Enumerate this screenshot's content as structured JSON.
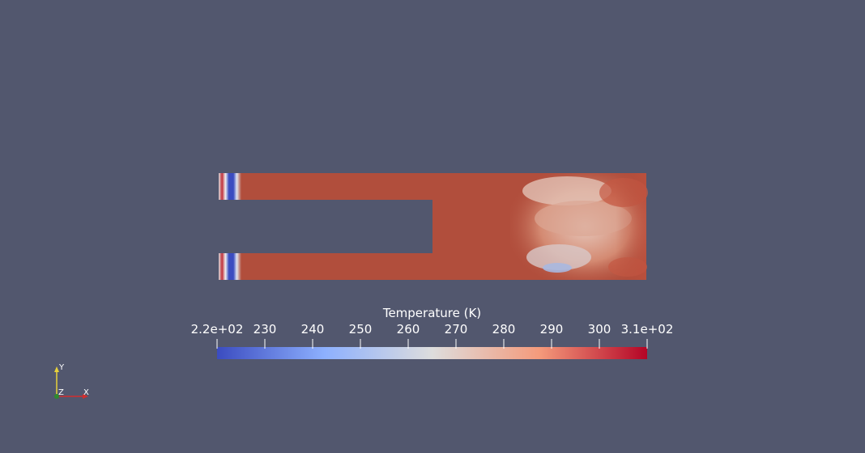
{
  "scene": {
    "background_color": "#52576e",
    "field": "Temperature",
    "body_color": "#b14e3c"
  },
  "colorbar": {
    "title": "Temperature (K)",
    "tick_labels": [
      "2.2e+02",
      "230",
      "240",
      "250",
      "260",
      "270",
      "280",
      "290",
      "300",
      "3.1e+02"
    ],
    "tick_values": [
      220,
      230,
      240,
      250,
      260,
      270,
      280,
      290,
      300,
      310
    ],
    "range": [
      220,
      310
    ],
    "colormap": "cool-to-warm",
    "color_stops": [
      "#3b4cc0",
      "#8db0fe",
      "#dddddd",
      "#f49a7b",
      "#b40426"
    ]
  },
  "orientation_axes": {
    "x_label": "X",
    "y_label": "Y",
    "z_label": "Z",
    "x_color": "#d22e2e",
    "y_color": "#e8d23a",
    "z_color": "#2e8b2e"
  }
}
